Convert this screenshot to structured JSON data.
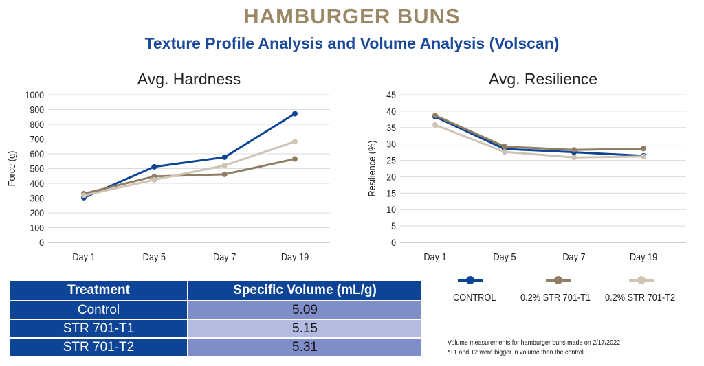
{
  "title": "HAMBURGER BUNS",
  "subtitle": "Texture Profile Analysis and Volume Analysis (Volscan)",
  "chart_data": [
    {
      "type": "line",
      "title": "Avg. Hardness",
      "xlabel": "",
      "ylabel": "Force (g)",
      "categories": [
        "Day 1",
        "Day 5",
        "Day 7",
        "Day 19"
      ],
      "ylim": [
        0,
        1000
      ],
      "yticks": [
        0,
        100,
        200,
        300,
        400,
        500,
        600,
        700,
        800,
        900,
        1000
      ],
      "grid": true,
      "series": [
        {
          "name": "CONTROL",
          "color": "#0d4495",
          "values": [
            303,
            512,
            577,
            872
          ]
        },
        {
          "name": "0.2% STR 701-T1",
          "color": "#8f7d64",
          "values": [
            330,
            447,
            461,
            565
          ]
        },
        {
          "name": "0.2% STR 701-T2",
          "color": "#cfc4b4",
          "values": [
            318,
            424,
            521,
            683
          ]
        }
      ]
    },
    {
      "type": "line",
      "title": "Avg. Resilience",
      "xlabel": "",
      "ylabel": "Resilience (%)",
      "categories": [
        "Day 1",
        "Day 5",
        "Day 7",
        "Day 19"
      ],
      "ylim": [
        0,
        45
      ],
      "yticks": [
        0,
        5,
        10,
        15,
        20,
        25,
        30,
        35,
        40,
        45
      ],
      "grid": true,
      "series": [
        {
          "name": "CONTROL",
          "color": "#0d4495",
          "values": [
            38.3,
            28.5,
            27.5,
            26.4
          ]
        },
        {
          "name": "0.2% STR 701-T1",
          "color": "#8f7d64",
          "values": [
            38.7,
            29.2,
            28.2,
            28.6
          ]
        },
        {
          "name": "0.2% STR 701-T2",
          "color": "#cfc4b4",
          "values": [
            35.8,
            27.6,
            25.9,
            26.2
          ]
        }
      ]
    }
  ],
  "legend": [
    {
      "label": "CONTROL",
      "color": "#0d4495"
    },
    {
      "label": "0.2% STR 701-T1",
      "color": "#8f7d64"
    },
    {
      "label": "0.2% STR 701-T2",
      "color": "#cfc4b4"
    }
  ],
  "table": {
    "headers": [
      "Treatment",
      "Specific Volume (mL/g)"
    ],
    "rows": [
      [
        "Control",
        "5.09"
      ],
      [
        "STR 701-T1",
        "5.15"
      ],
      [
        "STR 701-T2",
        "5.31"
      ]
    ]
  },
  "footnote": {
    "line1": "Volume measurements for hamburger buns made on 2/17/2022",
    "line2": "*T1 and T2 were bigger in volume than the control."
  }
}
